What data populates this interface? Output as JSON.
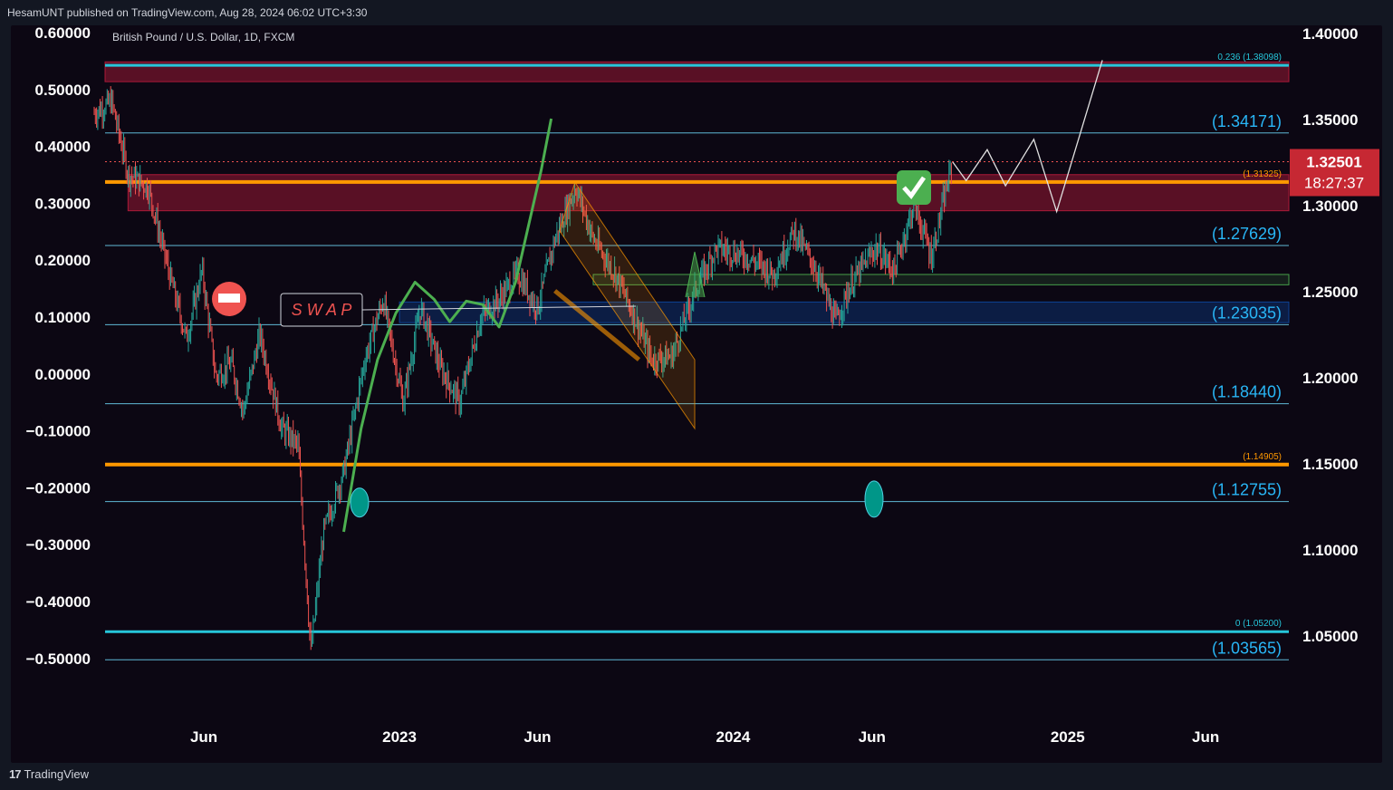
{
  "header": {
    "published_by": "HesamUNT published on TradingView.com, Aug 28, 2024 06:02 UTC+3:30"
  },
  "chart_data": {
    "type": "candlestick",
    "symbol_title": "British Pound / U.S. Dollar, 1D, FXCM",
    "right_axis": {
      "ticks": [
        "1.40000",
        "1.35000",
        "1.30000",
        "1.25000",
        "1.20000",
        "1.15000",
        "1.10000",
        "1.05000"
      ],
      "ylim": [
        1.03,
        1.41
      ]
    },
    "left_axis": {
      "ticks": [
        "0.60000",
        "0.50000",
        "0.40000",
        "0.30000",
        "0.20000",
        "0.10000",
        "0.00000",
        "−0.10000",
        "−0.20000",
        "−0.30000",
        "−0.40000",
        "−0.50000"
      ]
    },
    "x_axis": {
      "ticks": [
        "Jun",
        "2023",
        "Jun",
        "2024",
        "Jun",
        "2025",
        "Jun"
      ],
      "range": [
        "2022-02-01",
        "2025-09-01"
      ]
    },
    "current_price": {
      "value": "1.32501",
      "countdown": "18:27:37",
      "price": 1.32501
    },
    "fib_levels": [
      {
        "label": "0.236 (1.38098)",
        "price": 1.38098,
        "color": "#26c6da"
      },
      {
        "label": "(1.31325)",
        "price": 1.31325,
        "color": "#ff9800"
      },
      {
        "label": "(1.14905)",
        "price": 1.14905,
        "color": "#ff9800"
      },
      {
        "label": "0 (1.05200)",
        "price": 1.052,
        "color": "#26c6da"
      }
    ],
    "levels": [
      {
        "label": "(1.34171)",
        "price": 1.34171
      },
      {
        "label": "(1.27629)",
        "price": 1.27629
      },
      {
        "label": "(1.23035)",
        "price": 1.23035
      },
      {
        "label": "(1.18440)",
        "price": 1.1844
      },
      {
        "label": "(1.12755)",
        "price": 1.12755
      },
      {
        "label": "(1.03565)",
        "price": 1.03565
      }
    ],
    "zones": [
      {
        "type": "supply",
        "top": 1.383,
        "bottom": 1.3715,
        "color": "#b71c3c"
      },
      {
        "type": "supply",
        "top": 1.3175,
        "bottom": 1.2965,
        "color": "#b71c3c"
      },
      {
        "type": "demand",
        "top": 1.2435,
        "bottom": 1.2315,
        "color": "#0d47a1"
      },
      {
        "type": "trend-band",
        "top": 1.2595,
        "bottom": 1.2535,
        "color": "#4caf50"
      }
    ],
    "annotations": {
      "swap_label": "S W A P"
    },
    "price_path": [
      [
        "2022-02-01",
        1.353
      ],
      [
        "2022-02-20",
        1.36
      ],
      [
        "2022-03-10",
        1.318
      ],
      [
        "2022-04-01",
        1.31
      ],
      [
        "2022-04-25",
        1.258
      ],
      [
        "2022-05-13",
        1.222
      ],
      [
        "2022-05-30",
        1.262
      ],
      [
        "2022-06-14",
        1.2
      ],
      [
        "2022-07-01",
        1.208
      ],
      [
        "2022-07-14",
        1.18
      ],
      [
        "2022-08-01",
        1.225
      ],
      [
        "2022-08-25",
        1.17
      ],
      [
        "2022-09-12",
        1.16
      ],
      [
        "2022-09-26",
        1.04
      ],
      [
        "2022-10-10",
        1.11
      ],
      [
        "2022-11-01",
        1.145
      ],
      [
        "2022-11-24",
        1.21
      ],
      [
        "2022-12-14",
        1.245
      ],
      [
        "2023-01-05",
        1.185
      ],
      [
        "2023-01-24",
        1.24
      ],
      [
        "2023-02-15",
        1.205
      ],
      [
        "2023-03-08",
        1.185
      ],
      [
        "2023-03-31",
        1.235
      ],
      [
        "2023-04-20",
        1.245
      ],
      [
        "2023-05-10",
        1.26
      ],
      [
        "2023-06-01",
        1.24
      ],
      [
        "2023-06-20",
        1.28
      ],
      [
        "2023-07-13",
        1.31
      ],
      [
        "2023-08-01",
        1.28
      ],
      [
        "2023-08-25",
        1.26
      ],
      [
        "2023-09-15",
        1.235
      ],
      [
        "2023-10-04",
        1.21
      ],
      [
        "2023-10-26",
        1.212
      ],
      [
        "2023-11-20",
        1.25
      ],
      [
        "2023-12-14",
        1.275
      ],
      [
        "2024-01-15",
        1.27
      ],
      [
        "2024-02-14",
        1.26
      ],
      [
        "2024-03-08",
        1.285
      ],
      [
        "2024-04-01",
        1.262
      ],
      [
        "2024-04-22",
        1.232
      ],
      [
        "2024-05-10",
        1.255
      ],
      [
        "2024-06-05",
        1.275
      ],
      [
        "2024-06-25",
        1.262
      ],
      [
        "2024-07-17",
        1.3
      ],
      [
        "2024-08-05",
        1.27
      ],
      [
        "2024-08-28",
        1.32501
      ]
    ],
    "projection_path": [
      [
        "2024-08-28",
        1.325
      ],
      [
        "2024-09-12",
        1.314
      ],
      [
        "2024-10-05",
        1.332
      ],
      [
        "2024-10-25",
        1.311
      ],
      [
        "2024-11-25",
        1.338
      ],
      [
        "2024-12-20",
        1.296
      ],
      [
        "2025-02-08",
        1.384
      ]
    ],
    "wave_path": [
      [
        "2022-11-01",
        1.11
      ],
      [
        "2022-11-20",
        1.17
      ],
      [
        "2022-12-08",
        1.21
      ],
      [
        "2022-12-28",
        1.237
      ],
      [
        "2023-01-18",
        1.255
      ],
      [
        "2023-02-08",
        1.245
      ],
      [
        "2023-02-25",
        1.232
      ],
      [
        "2023-03-15",
        1.244
      ],
      [
        "2023-04-02",
        1.242
      ],
      [
        "2023-04-20",
        1.229
      ],
      [
        "2023-05-08",
        1.255
      ],
      [
        "2023-06-05",
        1.32
      ],
      [
        "2023-06-16",
        1.35
      ]
    ]
  }
}
